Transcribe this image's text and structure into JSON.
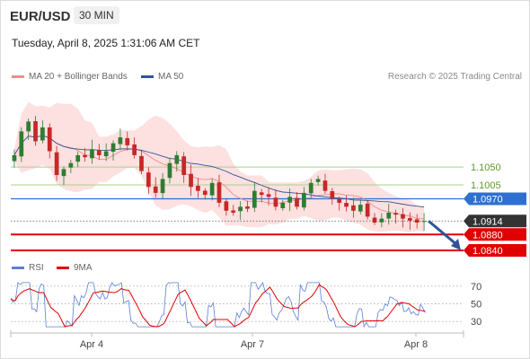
{
  "header": {
    "symbol": "EUR/USD",
    "timeframe": "30 MIN",
    "datetime": "Tuesday, April 8, 2025 1:31:06 AM CET"
  },
  "legend": {
    "bollinger_label": "MA 20 + Bollinger Bands",
    "ma50_label": "MA 50",
    "credit": "Research © 2025 Trading Central"
  },
  "rsi_legend": {
    "rsi_label": "RSI",
    "ma_label": "9MA"
  },
  "colors": {
    "bollinger": "#f28c8c",
    "band_fill": "#fde0e0",
    "ma50": "#2f5597",
    "candle_up": "#2e7d32",
    "candle_down": "#c62828",
    "resistance": "#a9d18e",
    "level_blue": "#2f6fd0",
    "support": "#e00000",
    "current": "#333333",
    "arrow": "#2f5597",
    "rsi": "#5b7fd6",
    "rsi_ma": "#e00000"
  },
  "chart_data": {
    "type": "candlestick",
    "x_ticks": [
      "Apr 4",
      "Apr 7",
      "Apr 8"
    ],
    "levels": [
      {
        "name": "resistance-2",
        "value": "1.1050",
        "kind": "resistance"
      },
      {
        "name": "resistance-1",
        "value": "1.1005",
        "kind": "resistance"
      },
      {
        "name": "pivot",
        "value": "1.0970",
        "kind": "pivot"
      },
      {
        "name": "current-price",
        "value": "1.0914",
        "kind": "current"
      },
      {
        "name": "support-1",
        "value": "1.0880",
        "kind": "support"
      },
      {
        "name": "support-2",
        "value": "1.0840",
        "kind": "support"
      }
    ],
    "ylim": [
      1.0815,
      1.1245
    ],
    "candle_close_path": [
      1.108,
      1.114,
      1.1165,
      1.1115,
      1.115,
      1.109,
      1.103,
      1.1045,
      1.106,
      1.108,
      1.1075,
      1.1095,
      1.108,
      1.109,
      1.111,
      1.1125,
      1.1105,
      1.108,
      1.104,
      1.1,
      1.0985,
      1.102,
      1.106,
      1.108,
      1.103,
      1.1,
      1.099,
      1.098,
      1.101,
      1.096,
      1.094,
      1.0935,
      1.095,
      1.0945,
      1.099,
      1.098,
      1.0975,
      1.095,
      1.096,
      1.0975,
      1.095,
      1.0985,
      1.101,
      1.102,
      1.099,
      1.097,
      1.096,
      1.095,
      1.094,
      1.0955,
      1.0925,
      1.091,
      1.092,
      1.0935,
      1.093,
      1.092,
      1.0915,
      1.091,
      1.0914
    ],
    "rsi": {
      "ticks": [
        70,
        50,
        30
      ],
      "ylim": [
        20,
        80
      ]
    }
  }
}
